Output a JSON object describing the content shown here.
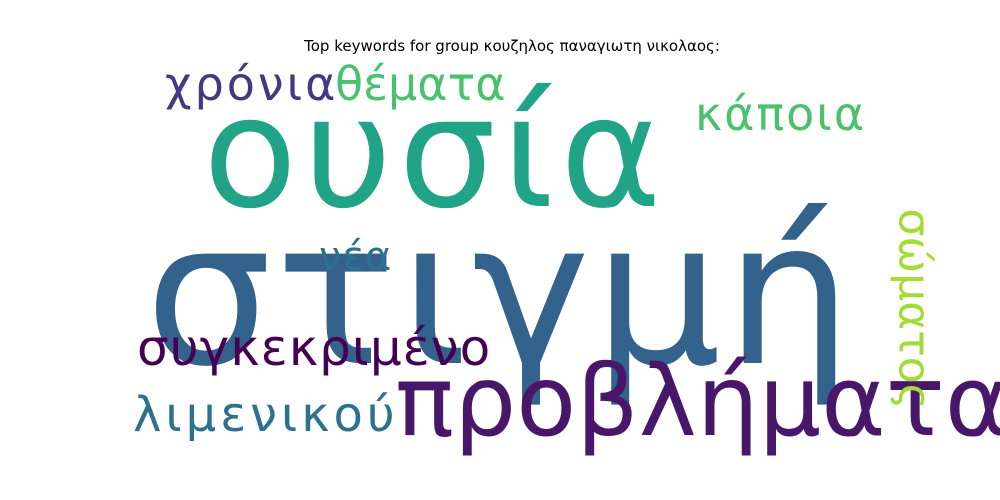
{
  "title": "Top keywords for group κουζηλος παναγιωτη νικολαος:",
  "words": [
    {
      "text": "στιγμή",
      "weight": 1.0,
      "color": "#33638d"
    },
    {
      "text": "ουσία",
      "weight": 0.75,
      "color": "#20a386"
    },
    {
      "text": "προβλήματα",
      "weight": 0.52,
      "color": "#481769"
    },
    {
      "text": "συγκεκριμένο",
      "weight": 0.28,
      "color": "#440154"
    },
    {
      "text": "λιμενικού",
      "weight": 0.28,
      "color": "#2c728e"
    },
    {
      "text": "χρόνια",
      "weight": 0.25,
      "color": "#453781"
    },
    {
      "text": "θέματα",
      "weight": 0.25,
      "color": "#4ac16d"
    },
    {
      "text": "κάποια",
      "weight": 0.25,
      "color": "#4ac16d"
    },
    {
      "text": "σώματος",
      "weight": 0.24,
      "color": "#a5db36"
    },
    {
      "text": "νέα",
      "weight": 0.2,
      "color": "#2c728e"
    }
  ]
}
